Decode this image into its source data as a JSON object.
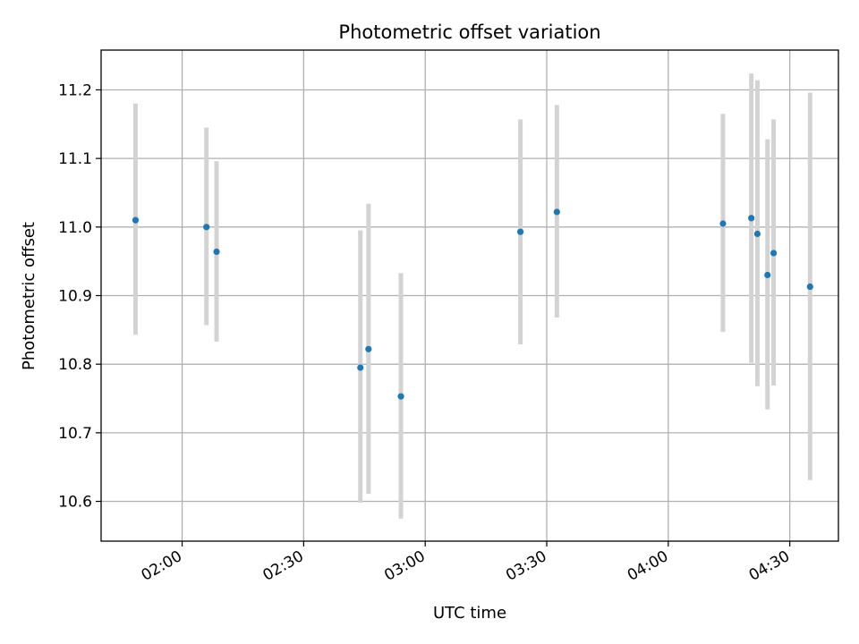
{
  "chart_data": {
    "type": "scatter",
    "title": "Photometric offset variation",
    "xlabel": "UTC time",
    "ylabel": "Photometric offset",
    "x_unit": "UTC clock time",
    "xlim": [
      "01:40",
      "04:42"
    ],
    "ylim": [
      10.542,
      11.258
    ],
    "grid": true,
    "x_ticks": [
      "02:00",
      "02:30",
      "03:00",
      "03:30",
      "04:00",
      "04:30"
    ],
    "y_ticks": [
      "10.6",
      "10.7",
      "10.8",
      "10.9",
      "11.0",
      "11.1",
      "11.2"
    ],
    "colors": {
      "points": "#1f77b4",
      "error_bars": "#d3d3d3",
      "grid": "#b0b0b0"
    },
    "points": [
      {
        "x": "01:48:30",
        "y": 11.01,
        "err_low": 10.843,
        "err_high": 11.18
      },
      {
        "x": "02:06:00",
        "y": 11.0,
        "err_low": 10.857,
        "err_high": 11.145
      },
      {
        "x": "02:08:30",
        "y": 10.964,
        "err_low": 10.833,
        "err_high": 11.096
      },
      {
        "x": "02:44:00",
        "y": 10.795,
        "err_low": 10.598,
        "err_high": 10.995
      },
      {
        "x": "02:46:00",
        "y": 10.822,
        "err_low": 10.611,
        "err_high": 11.034
      },
      {
        "x": "02:54:00",
        "y": 10.753,
        "err_low": 10.575,
        "err_high": 10.933
      },
      {
        "x": "03:23:30",
        "y": 10.993,
        "err_low": 10.829,
        "err_high": 11.157
      },
      {
        "x": "03:32:30",
        "y": 11.022,
        "err_low": 10.868,
        "err_high": 11.178
      },
      {
        "x": "04:13:30",
        "y": 11.005,
        "err_low": 10.847,
        "err_high": 11.165
      },
      {
        "x": "04:20:30",
        "y": 11.013,
        "err_low": 10.802,
        "err_high": 11.224
      },
      {
        "x": "04:22:00",
        "y": 10.99,
        "err_low": 10.768,
        "err_high": 11.214
      },
      {
        "x": "04:24:30",
        "y": 10.93,
        "err_low": 10.734,
        "err_high": 11.128
      },
      {
        "x": "04:26:00",
        "y": 10.962,
        "err_low": 10.769,
        "err_high": 11.157
      },
      {
        "x": "04:35:00",
        "y": 10.913,
        "err_low": 10.631,
        "err_high": 11.196
      }
    ]
  }
}
